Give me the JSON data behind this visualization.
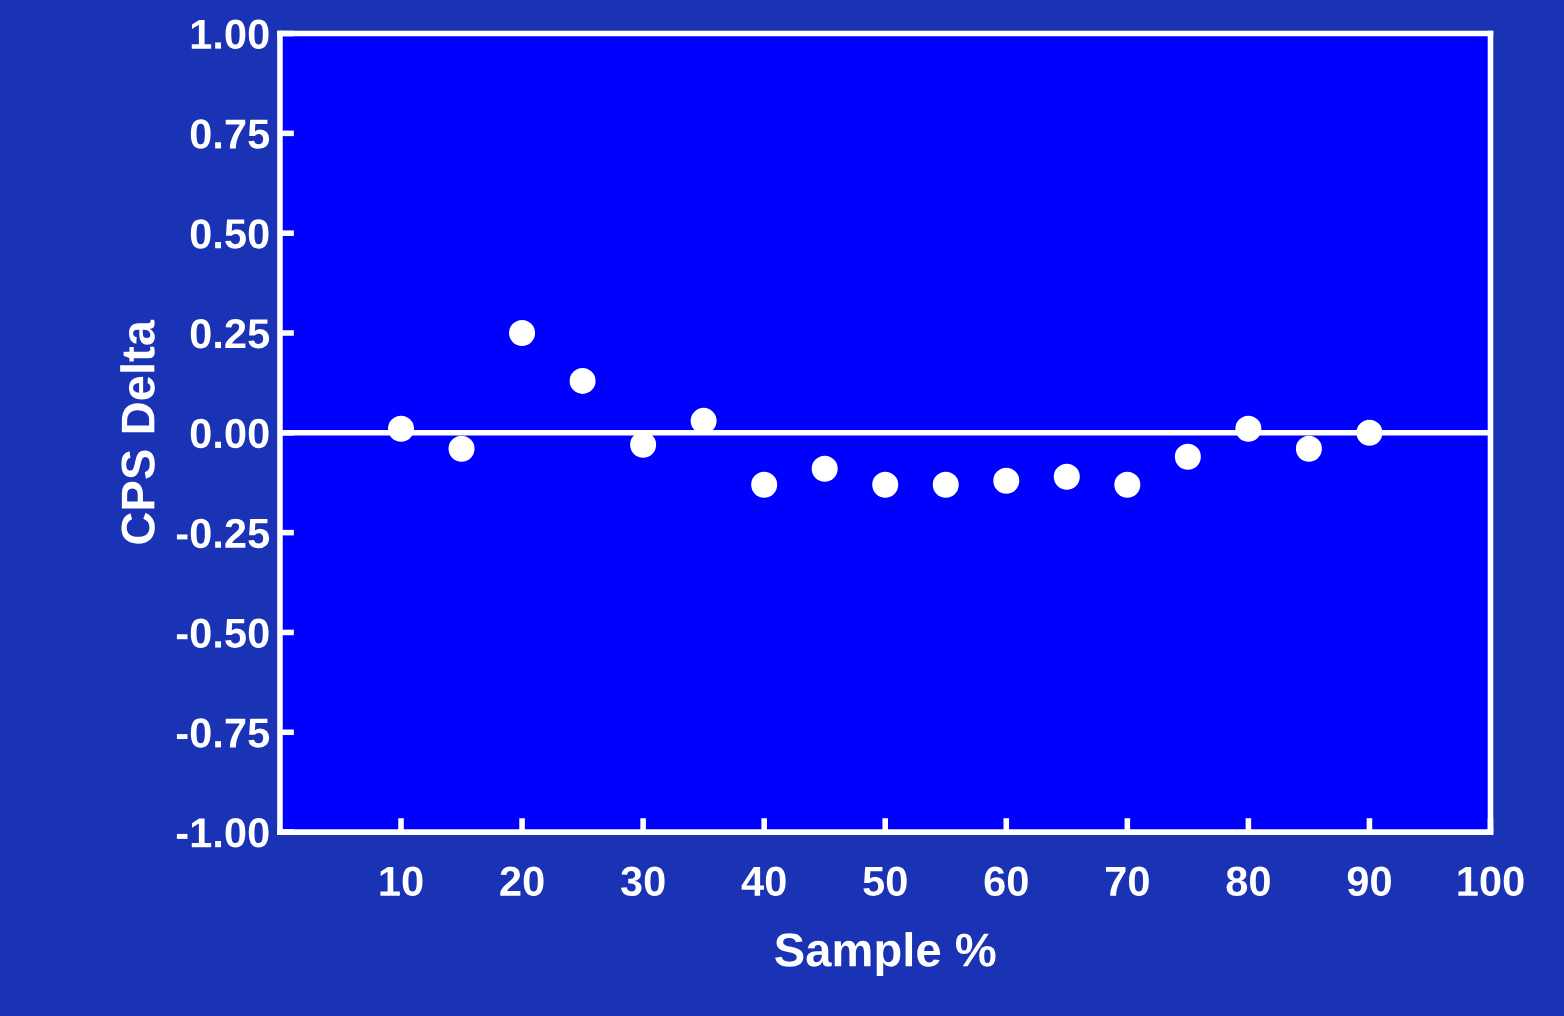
{
  "chart_data": {
    "type": "scatter",
    "xlabel": "Sample %",
    "ylabel": "CPS Delta",
    "x": [
      10,
      15,
      20,
      25,
      30,
      35,
      40,
      45,
      50,
      55,
      60,
      65,
      70,
      75,
      80,
      85,
      90
    ],
    "series": [
      {
        "color": "#ffffff",
        "values": [
          0.01,
          -0.04,
          0.25,
          0.13,
          -0.03,
          0.03,
          -0.13,
          -0.09,
          -0.13,
          -0.13,
          -0.12,
          -0.11,
          -0.13,
          -0.06,
          0.01,
          -0.04,
          0.0
        ]
      }
    ],
    "xlim": [
      0,
      100
    ],
    "xticks": [
      10,
      20,
      30,
      40,
      50,
      60,
      70,
      80,
      90,
      100
    ],
    "ylim": [
      -1,
      1
    ],
    "yticks": [
      {
        "value": -1,
        "label": "-1.00"
      },
      {
        "value": -0.75,
        "label": "-0.75"
      },
      {
        "value": -0.5,
        "label": "-0.50"
      },
      {
        "value": -0.25,
        "label": "-0.25"
      },
      {
        "value": 0,
        "label": "0.00"
      },
      {
        "value": 0.25,
        "label": "0.25"
      },
      {
        "value": 0.5,
        "label": "0.50"
      },
      {
        "value": 0.75,
        "label": "0.75"
      },
      {
        "value": 1,
        "label": "1.00"
      }
    ],
    "ref_lines": [
      {
        "axis": "y",
        "value": 0,
        "color": "#ffffff"
      }
    ],
    "grid": false,
    "marker": "circle"
  }
}
